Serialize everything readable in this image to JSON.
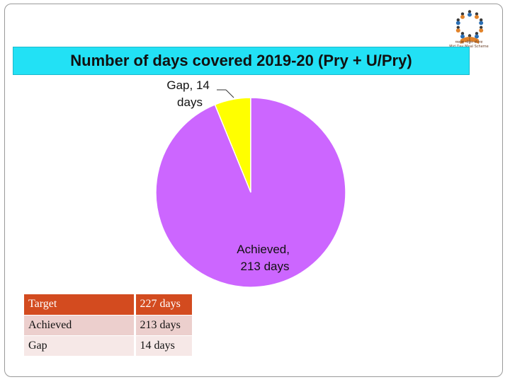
{
  "chart_data": {
    "type": "pie",
    "title": "Number of days covered 2019-20 (Pry + U/Pry)",
    "slices": [
      {
        "label": "Gap",
        "value": 14,
        "unit": "days",
        "label_line1": "Gap, 14",
        "label_line2": "days",
        "color": "#ffff00"
      },
      {
        "label": "Achieved",
        "value": 213,
        "unit": "days",
        "label_line1": "Achieved,",
        "label_line2": "213 days",
        "color": "#cc66ff"
      }
    ]
  },
  "summary_table": {
    "rows": [
      {
        "label": "Target",
        "value": "227 days"
      },
      {
        "label": "Achieved",
        "value": "213 days"
      },
      {
        "label": "Gap",
        "value": "14 days"
      }
    ]
  },
  "logo": {
    "icon": "mid-day-meal-logo-icon",
    "caption_line1": "मध्याह्न भोजन योजना",
    "caption_line2": "Mid Day Meal Scheme"
  },
  "colors": {
    "title_background": "#22e1f5",
    "table_header": "#d34b1f",
    "table_row_1": "#eccfcd",
    "table_row_2": "#f6e8e7"
  }
}
